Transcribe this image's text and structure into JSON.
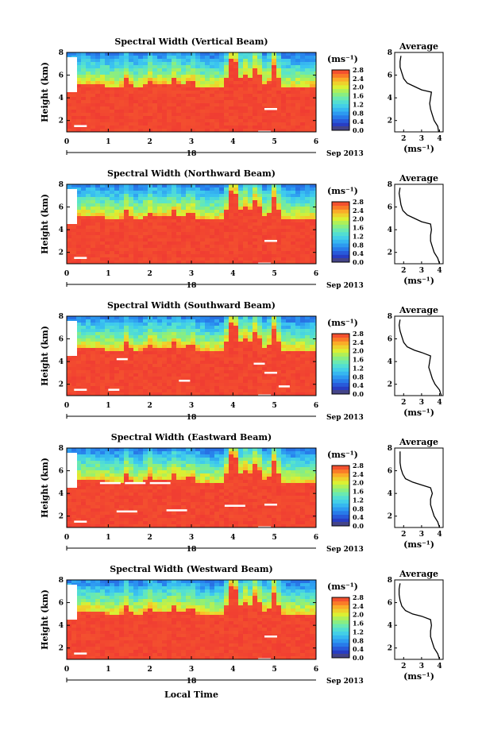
{
  "chart_data": [
    {
      "type": "heatmap",
      "title": "Spectral Width (Vertical Beam)",
      "ylabel": "Height (km)",
      "xlim": [
        0,
        6
      ],
      "ylim": [
        1,
        8
      ],
      "x_ticks": [
        "0",
        "1",
        "2",
        "3",
        "4",
        "5",
        "6"
      ],
      "y_ticks": [
        "2",
        "4",
        "6",
        "8"
      ],
      "colorbar": {
        "label": "(ms⁻¹)",
        "ticks": [
          "0.0",
          "0.4",
          "0.8",
          "1.2",
          "1.6",
          "2.0",
          "2.4",
          "2.8"
        ],
        "range": [
          0,
          2.8
        ]
      },
      "date_label": "18",
      "month_label": "Sep 2013",
      "average": {
        "title": "Average",
        "xlabel": "(ms⁻¹)",
        "xlim": [
          1.5,
          4.2
        ],
        "ylim": [
          1,
          8
        ],
        "x_ticks": [
          "2",
          "3",
          "4"
        ],
        "y_ticks": [
          "2",
          "4",
          "6",
          "8"
        ],
        "profile": [
          [
            3.95,
            1.0
          ],
          [
            3.9,
            1.5
          ],
          [
            3.7,
            2.0
          ],
          [
            3.6,
            2.5
          ],
          [
            3.5,
            3.0
          ],
          [
            3.45,
            3.5
          ],
          [
            3.5,
            4.0
          ],
          [
            3.55,
            4.5
          ],
          [
            3.0,
            4.7
          ],
          [
            2.6,
            5.0
          ],
          [
            2.2,
            5.3
          ],
          [
            2.0,
            5.7
          ],
          [
            1.9,
            6.2
          ],
          [
            1.8,
            6.7
          ],
          [
            1.8,
            7.2
          ],
          [
            1.85,
            7.7
          ]
        ]
      }
    },
    {
      "type": "heatmap",
      "title": "Spectral Width (Northward Beam)",
      "ylabel": "Height (km)",
      "xlim": [
        0,
        6
      ],
      "ylim": [
        1,
        8
      ],
      "x_ticks": [
        "0",
        "1",
        "2",
        "3",
        "4",
        "5",
        "6"
      ],
      "y_ticks": [
        "2",
        "4",
        "6",
        "8"
      ],
      "colorbar": {
        "label": "(ms⁻¹)",
        "ticks": [
          "0.0",
          "0.4",
          "0.8",
          "1.2",
          "1.6",
          "2.0",
          "2.4",
          "2.8"
        ],
        "range": [
          0,
          2.8
        ]
      },
      "date_label": "18",
      "month_label": "Sep 2013",
      "average": {
        "title": "Average",
        "xlabel": "(ms⁻¹)",
        "xlim": [
          1.5,
          4.2
        ],
        "ylim": [
          1,
          8
        ],
        "x_ticks": [
          "2",
          "3",
          "4"
        ],
        "y_ticks": [
          "2",
          "4",
          "6",
          "8"
        ],
        "profile": [
          [
            4.0,
            1.0
          ],
          [
            3.9,
            1.5
          ],
          [
            3.7,
            2.0
          ],
          [
            3.6,
            2.5
          ],
          [
            3.5,
            3.0
          ],
          [
            3.5,
            3.5
          ],
          [
            3.55,
            4.0
          ],
          [
            3.5,
            4.5
          ],
          [
            3.0,
            4.7
          ],
          [
            2.6,
            5.0
          ],
          [
            2.2,
            5.3
          ],
          [
            1.95,
            5.7
          ],
          [
            1.85,
            6.2
          ],
          [
            1.8,
            6.7
          ],
          [
            1.75,
            7.2
          ],
          [
            1.8,
            7.7
          ]
        ]
      }
    },
    {
      "type": "heatmap",
      "title": "Spectral Width (Southward Beam)",
      "ylabel": "Height (km)",
      "xlim": [
        0,
        6
      ],
      "ylim": [
        1,
        8
      ],
      "x_ticks": [
        "0",
        "1",
        "2",
        "3",
        "4",
        "5",
        "6"
      ],
      "y_ticks": [
        "2",
        "4",
        "6",
        "8"
      ],
      "colorbar": {
        "label": "(ms⁻¹)",
        "ticks": [
          "0.0",
          "0.4",
          "0.8",
          "1.2",
          "1.6",
          "2.0",
          "2.4",
          "2.8"
        ],
        "range": [
          0,
          2.8
        ]
      },
      "date_label": "18",
      "month_label": "Sep 2013",
      "average": {
        "title": "Average",
        "xlabel": "(ms⁻¹)",
        "xlim": [
          1.5,
          4.2
        ],
        "ylim": [
          1,
          8
        ],
        "x_ticks": [
          "2",
          "3",
          "4"
        ],
        "y_ticks": [
          "2",
          "4",
          "6",
          "8"
        ],
        "profile": [
          [
            4.1,
            1.0
          ],
          [
            4.0,
            1.5
          ],
          [
            3.75,
            2.0
          ],
          [
            3.6,
            2.5
          ],
          [
            3.5,
            3.0
          ],
          [
            3.4,
            3.5
          ],
          [
            3.45,
            4.0
          ],
          [
            3.5,
            4.5
          ],
          [
            3.0,
            4.8
          ],
          [
            2.6,
            5.0
          ],
          [
            2.2,
            5.3
          ],
          [
            2.0,
            5.7
          ],
          [
            1.9,
            6.2
          ],
          [
            1.8,
            6.7
          ],
          [
            1.75,
            7.2
          ],
          [
            1.8,
            7.7
          ]
        ]
      }
    },
    {
      "type": "heatmap",
      "title": "Spectral Width (Eastward Beam)",
      "ylabel": "Height (km)",
      "xlim": [
        0,
        6
      ],
      "ylim": [
        1,
        8
      ],
      "x_ticks": [
        "0",
        "1",
        "2",
        "3",
        "4",
        "5",
        "6"
      ],
      "y_ticks": [
        "2",
        "4",
        "6",
        "8"
      ],
      "colorbar": {
        "label": "(ms⁻¹)",
        "ticks": [
          "0.0",
          "0.4",
          "0.8",
          "1.2",
          "1.6",
          "2.0",
          "2.4",
          "2.8"
        ],
        "range": [
          0,
          2.8
        ]
      },
      "date_label": "18",
      "month_label": "Sep 2013",
      "average": {
        "title": "Average",
        "xlabel": "(ms⁻¹)",
        "xlim": [
          1.5,
          4.2
        ],
        "ylim": [
          1,
          8
        ],
        "x_ticks": [
          "2",
          "3",
          "4"
        ],
        "y_ticks": [
          "2",
          "4",
          "6",
          "8"
        ],
        "profile": [
          [
            4.0,
            1.0
          ],
          [
            3.9,
            1.5
          ],
          [
            3.7,
            2.0
          ],
          [
            3.6,
            2.5
          ],
          [
            3.5,
            3.0
          ],
          [
            3.5,
            3.5
          ],
          [
            3.6,
            4.0
          ],
          [
            3.5,
            4.5
          ],
          [
            2.9,
            4.8
          ],
          [
            2.5,
            5.0
          ],
          [
            2.1,
            5.3
          ],
          [
            1.95,
            5.7
          ],
          [
            1.85,
            6.2
          ],
          [
            1.8,
            6.7
          ],
          [
            1.8,
            7.2
          ],
          [
            1.8,
            7.7
          ]
        ]
      }
    },
    {
      "type": "heatmap",
      "title": "Spectral Width (Westward Beam)",
      "ylabel": "Height (km)",
      "xlabel": "Local Time",
      "xlim": [
        0,
        6
      ],
      "ylim": [
        1,
        8
      ],
      "x_ticks": [
        "0",
        "1",
        "2",
        "3",
        "4",
        "5",
        "6"
      ],
      "y_ticks": [
        "2",
        "4",
        "6",
        "8"
      ],
      "colorbar": {
        "label": "(ms⁻¹)",
        "ticks": [
          "0.0",
          "0.4",
          "0.8",
          "1.2",
          "1.6",
          "2.0",
          "2.4",
          "2.8"
        ],
        "range": [
          0,
          2.8
        ]
      },
      "date_label": "18",
      "month_label": "Sep 2013",
      "average": {
        "title": "Average",
        "xlabel": "(ms⁻¹)",
        "xlim": [
          1.5,
          4.2
        ],
        "ylim": [
          1,
          8
        ],
        "x_ticks": [
          "2",
          "3",
          "4"
        ],
        "y_ticks": [
          "2",
          "4",
          "6",
          "8"
        ],
        "profile": [
          [
            4.0,
            1.0
          ],
          [
            3.9,
            1.5
          ],
          [
            3.7,
            2.0
          ],
          [
            3.6,
            2.5
          ],
          [
            3.5,
            3.0
          ],
          [
            3.5,
            3.5
          ],
          [
            3.55,
            4.0
          ],
          [
            3.5,
            4.5
          ],
          [
            3.0,
            4.8
          ],
          [
            2.5,
            5.0
          ],
          [
            2.1,
            5.3
          ],
          [
            1.9,
            5.7
          ],
          [
            1.8,
            6.2
          ],
          [
            1.75,
            6.7
          ],
          [
            1.75,
            7.2
          ],
          [
            1.8,
            7.7
          ]
        ]
      }
    }
  ]
}
